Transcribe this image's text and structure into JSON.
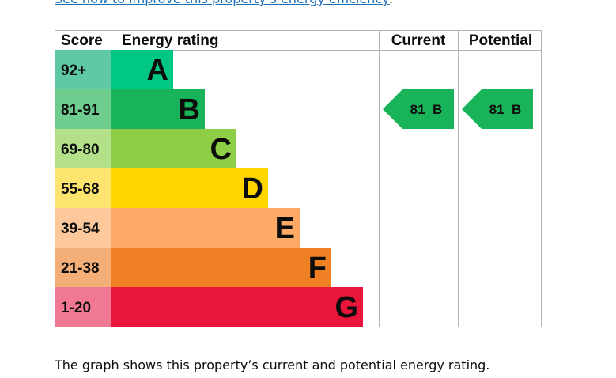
{
  "top_link": {
    "text": "See how to improve this property’s energy efficiency",
    "suffix": "."
  },
  "chart_data": {
    "type": "table",
    "headers": {
      "score": "Score",
      "rating": "Energy rating",
      "current": "Current",
      "potential": "Potential"
    },
    "bands": [
      {
        "score": "92+",
        "letter": "A",
        "color": "#00c781",
        "score_bg": "#5fc8a5"
      },
      {
        "score": "81-91",
        "letter": "B",
        "color": "#19b459",
        "score_bg": "#6fcc8f"
      },
      {
        "score": "69-80",
        "letter": "C",
        "color": "#8dce46",
        "score_bg": "#b4e08a"
      },
      {
        "score": "55-68",
        "letter": "D",
        "color": "#ffd500",
        "score_bg": "#fce46e"
      },
      {
        "score": "39-54",
        "letter": "E",
        "color": "#fcaa65",
        "score_bg": "#fcc89c"
      },
      {
        "score": "21-38",
        "letter": "F",
        "color": "#ef8023",
        "score_bg": "#f4ae78"
      },
      {
        "score": "1-20",
        "letter": "G",
        "color": "#e9153b",
        "score_bg": "#f17892"
      }
    ],
    "current": {
      "value": 81,
      "band": "B",
      "label": "81  B",
      "color": "#19b459"
    },
    "potential": {
      "value": 81,
      "band": "B",
      "label": "81  B",
      "color": "#19b459"
    }
  },
  "caption": "The graph shows this property’s current and potential energy rating."
}
